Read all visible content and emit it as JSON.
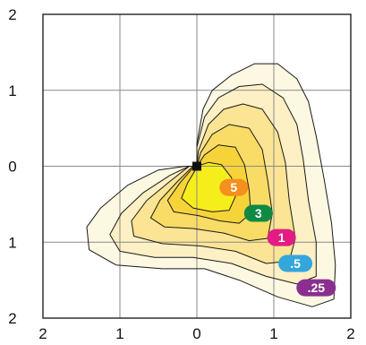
{
  "chart_data": {
    "type": "contour",
    "xlim": [
      -2,
      2
    ],
    "ylim": [
      -2,
      2
    ],
    "grid": true,
    "x_tick_labels": [
      {
        "value": -2,
        "text": "2"
      },
      {
        "value": -1,
        "text": "1"
      },
      {
        "value": 0,
        "text": "0"
      },
      {
        "value": 1,
        "text": "1"
      },
      {
        "value": 2,
        "text": "2"
      }
    ],
    "y_tick_labels": [
      {
        "value": 2,
        "text": "2"
      },
      {
        "value": 1,
        "text": "1"
      },
      {
        "value": 0,
        "text": "0"
      },
      {
        "value": -1,
        "text": "1"
      },
      {
        "value": -2,
        "text": "2"
      }
    ],
    "origin_marker": {
      "x": 0,
      "y": 0
    },
    "contours": [
      {
        "level": ".25",
        "fill": "#fdf8e2",
        "label_color": "#8a2f8f",
        "label_at": {
          "x": 1.55,
          "y": -1.6
        },
        "points": [
          [
            0,
            0
          ],
          [
            0,
            0.3
          ],
          [
            0.08,
            0.75
          ],
          [
            0.2,
            1.0
          ],
          [
            0.45,
            1.2
          ],
          [
            0.75,
            1.35
          ],
          [
            1.05,
            1.35
          ],
          [
            1.3,
            1.15
          ],
          [
            1.45,
            0.85
          ],
          [
            1.55,
            0.4
          ],
          [
            1.65,
            -0.15
          ],
          [
            1.75,
            -0.75
          ],
          [
            1.8,
            -1.3
          ],
          [
            1.78,
            -1.75
          ],
          [
            1.5,
            -1.85
          ],
          [
            1.05,
            -1.72
          ],
          [
            0.55,
            -1.5
          ],
          [
            0.1,
            -1.35
          ],
          [
            -0.45,
            -1.35
          ],
          [
            -1.05,
            -1.3
          ],
          [
            -1.4,
            -1.1
          ],
          [
            -1.43,
            -0.8
          ],
          [
            -1.25,
            -0.55
          ],
          [
            -0.9,
            -0.25
          ],
          [
            -0.5,
            -0.05
          ],
          [
            -0.15,
            0
          ]
        ]
      },
      {
        "level": ".5",
        "fill": "#fdf0c4",
        "label_color": "#35a6dc",
        "label_at": {
          "x": 1.28,
          "y": -1.28
        },
        "points": [
          [
            0,
            0
          ],
          [
            0,
            0.25
          ],
          [
            0.1,
            0.65
          ],
          [
            0.28,
            0.9
          ],
          [
            0.55,
            1.05
          ],
          [
            0.85,
            1.08
          ],
          [
            1.12,
            0.9
          ],
          [
            1.3,
            0.55
          ],
          [
            1.38,
            0.1
          ],
          [
            1.45,
            -0.45
          ],
          [
            1.55,
            -1.0
          ],
          [
            1.55,
            -1.45
          ],
          [
            1.3,
            -1.55
          ],
          [
            0.9,
            -1.45
          ],
          [
            0.45,
            -1.28
          ],
          [
            -0.05,
            -1.2
          ],
          [
            -0.55,
            -1.2
          ],
          [
            -1.0,
            -1.12
          ],
          [
            -1.13,
            -0.9
          ],
          [
            -0.98,
            -0.62
          ],
          [
            -0.7,
            -0.35
          ],
          [
            -0.35,
            -0.12
          ],
          [
            -0.1,
            0
          ]
        ]
      },
      {
        "level": "1",
        "fill": "#fbe493",
        "label_color": "#e21c82",
        "label_at": {
          "x": 1.1,
          "y": -0.94
        },
        "points": [
          [
            0,
            0
          ],
          [
            0.02,
            0.2
          ],
          [
            0.15,
            0.55
          ],
          [
            0.35,
            0.75
          ],
          [
            0.6,
            0.82
          ],
          [
            0.85,
            0.75
          ],
          [
            1.05,
            0.45
          ],
          [
            1.15,
            0.05
          ],
          [
            1.2,
            -0.45
          ],
          [
            1.28,
            -0.95
          ],
          [
            1.2,
            -1.25
          ],
          [
            0.9,
            -1.28
          ],
          [
            0.5,
            -1.12
          ],
          [
            0.05,
            -1.05
          ],
          [
            -0.45,
            -1.02
          ],
          [
            -0.82,
            -0.92
          ],
          [
            -0.85,
            -0.72
          ],
          [
            -0.65,
            -0.45
          ],
          [
            -0.35,
            -0.2
          ],
          [
            -0.1,
            0
          ]
        ]
      },
      {
        "level": "3",
        "fill": "#f9dc65",
        "label_color": "#0e8a44",
        "label_at": {
          "x": 0.8,
          "y": -0.62
        },
        "points": [
          [
            0,
            0
          ],
          [
            0.05,
            0.18
          ],
          [
            0.2,
            0.42
          ],
          [
            0.42,
            0.55
          ],
          [
            0.68,
            0.5
          ],
          [
            0.85,
            0.22
          ],
          [
            0.92,
            -0.18
          ],
          [
            0.98,
            -0.62
          ],
          [
            0.92,
            -0.95
          ],
          [
            0.68,
            -0.98
          ],
          [
            0.35,
            -0.88
          ],
          [
            -0.05,
            -0.82
          ],
          [
            -0.42,
            -0.8
          ],
          [
            -0.6,
            -0.68
          ],
          [
            -0.48,
            -0.45
          ],
          [
            -0.25,
            -0.2
          ],
          [
            -0.05,
            0
          ]
        ]
      },
      {
        "level": "5",
        "fill": "#f7d33a",
        "label_color": "#f39020",
        "label_at": {
          "x": 0.48,
          "y": -0.28
        },
        "points": [
          [
            0,
            0
          ],
          [
            0.1,
            0.15
          ],
          [
            0.28,
            0.28
          ],
          [
            0.5,
            0.25
          ],
          [
            0.62,
            0.02
          ],
          [
            0.68,
            -0.32
          ],
          [
            0.7,
            -0.62
          ],
          [
            0.55,
            -0.75
          ],
          [
            0.3,
            -0.72
          ],
          [
            0.02,
            -0.65
          ],
          [
            -0.3,
            -0.6
          ],
          [
            -0.38,
            -0.45
          ],
          [
            -0.22,
            -0.22
          ],
          [
            -0.05,
            -0.02
          ]
        ]
      },
      {
        "level": "",
        "fill": "#f6ee1b",
        "label_color": "",
        "points": [
          [
            0,
            0
          ],
          [
            0.15,
            0.05
          ],
          [
            0.32,
            0.02
          ],
          [
            0.45,
            -0.15
          ],
          [
            0.5,
            -0.4
          ],
          [
            0.42,
            -0.58
          ],
          [
            0.2,
            -0.6
          ],
          [
            -0.05,
            -0.55
          ],
          [
            -0.2,
            -0.42
          ],
          [
            -0.12,
            -0.22
          ],
          [
            -0.02,
            -0.05
          ]
        ]
      }
    ]
  }
}
